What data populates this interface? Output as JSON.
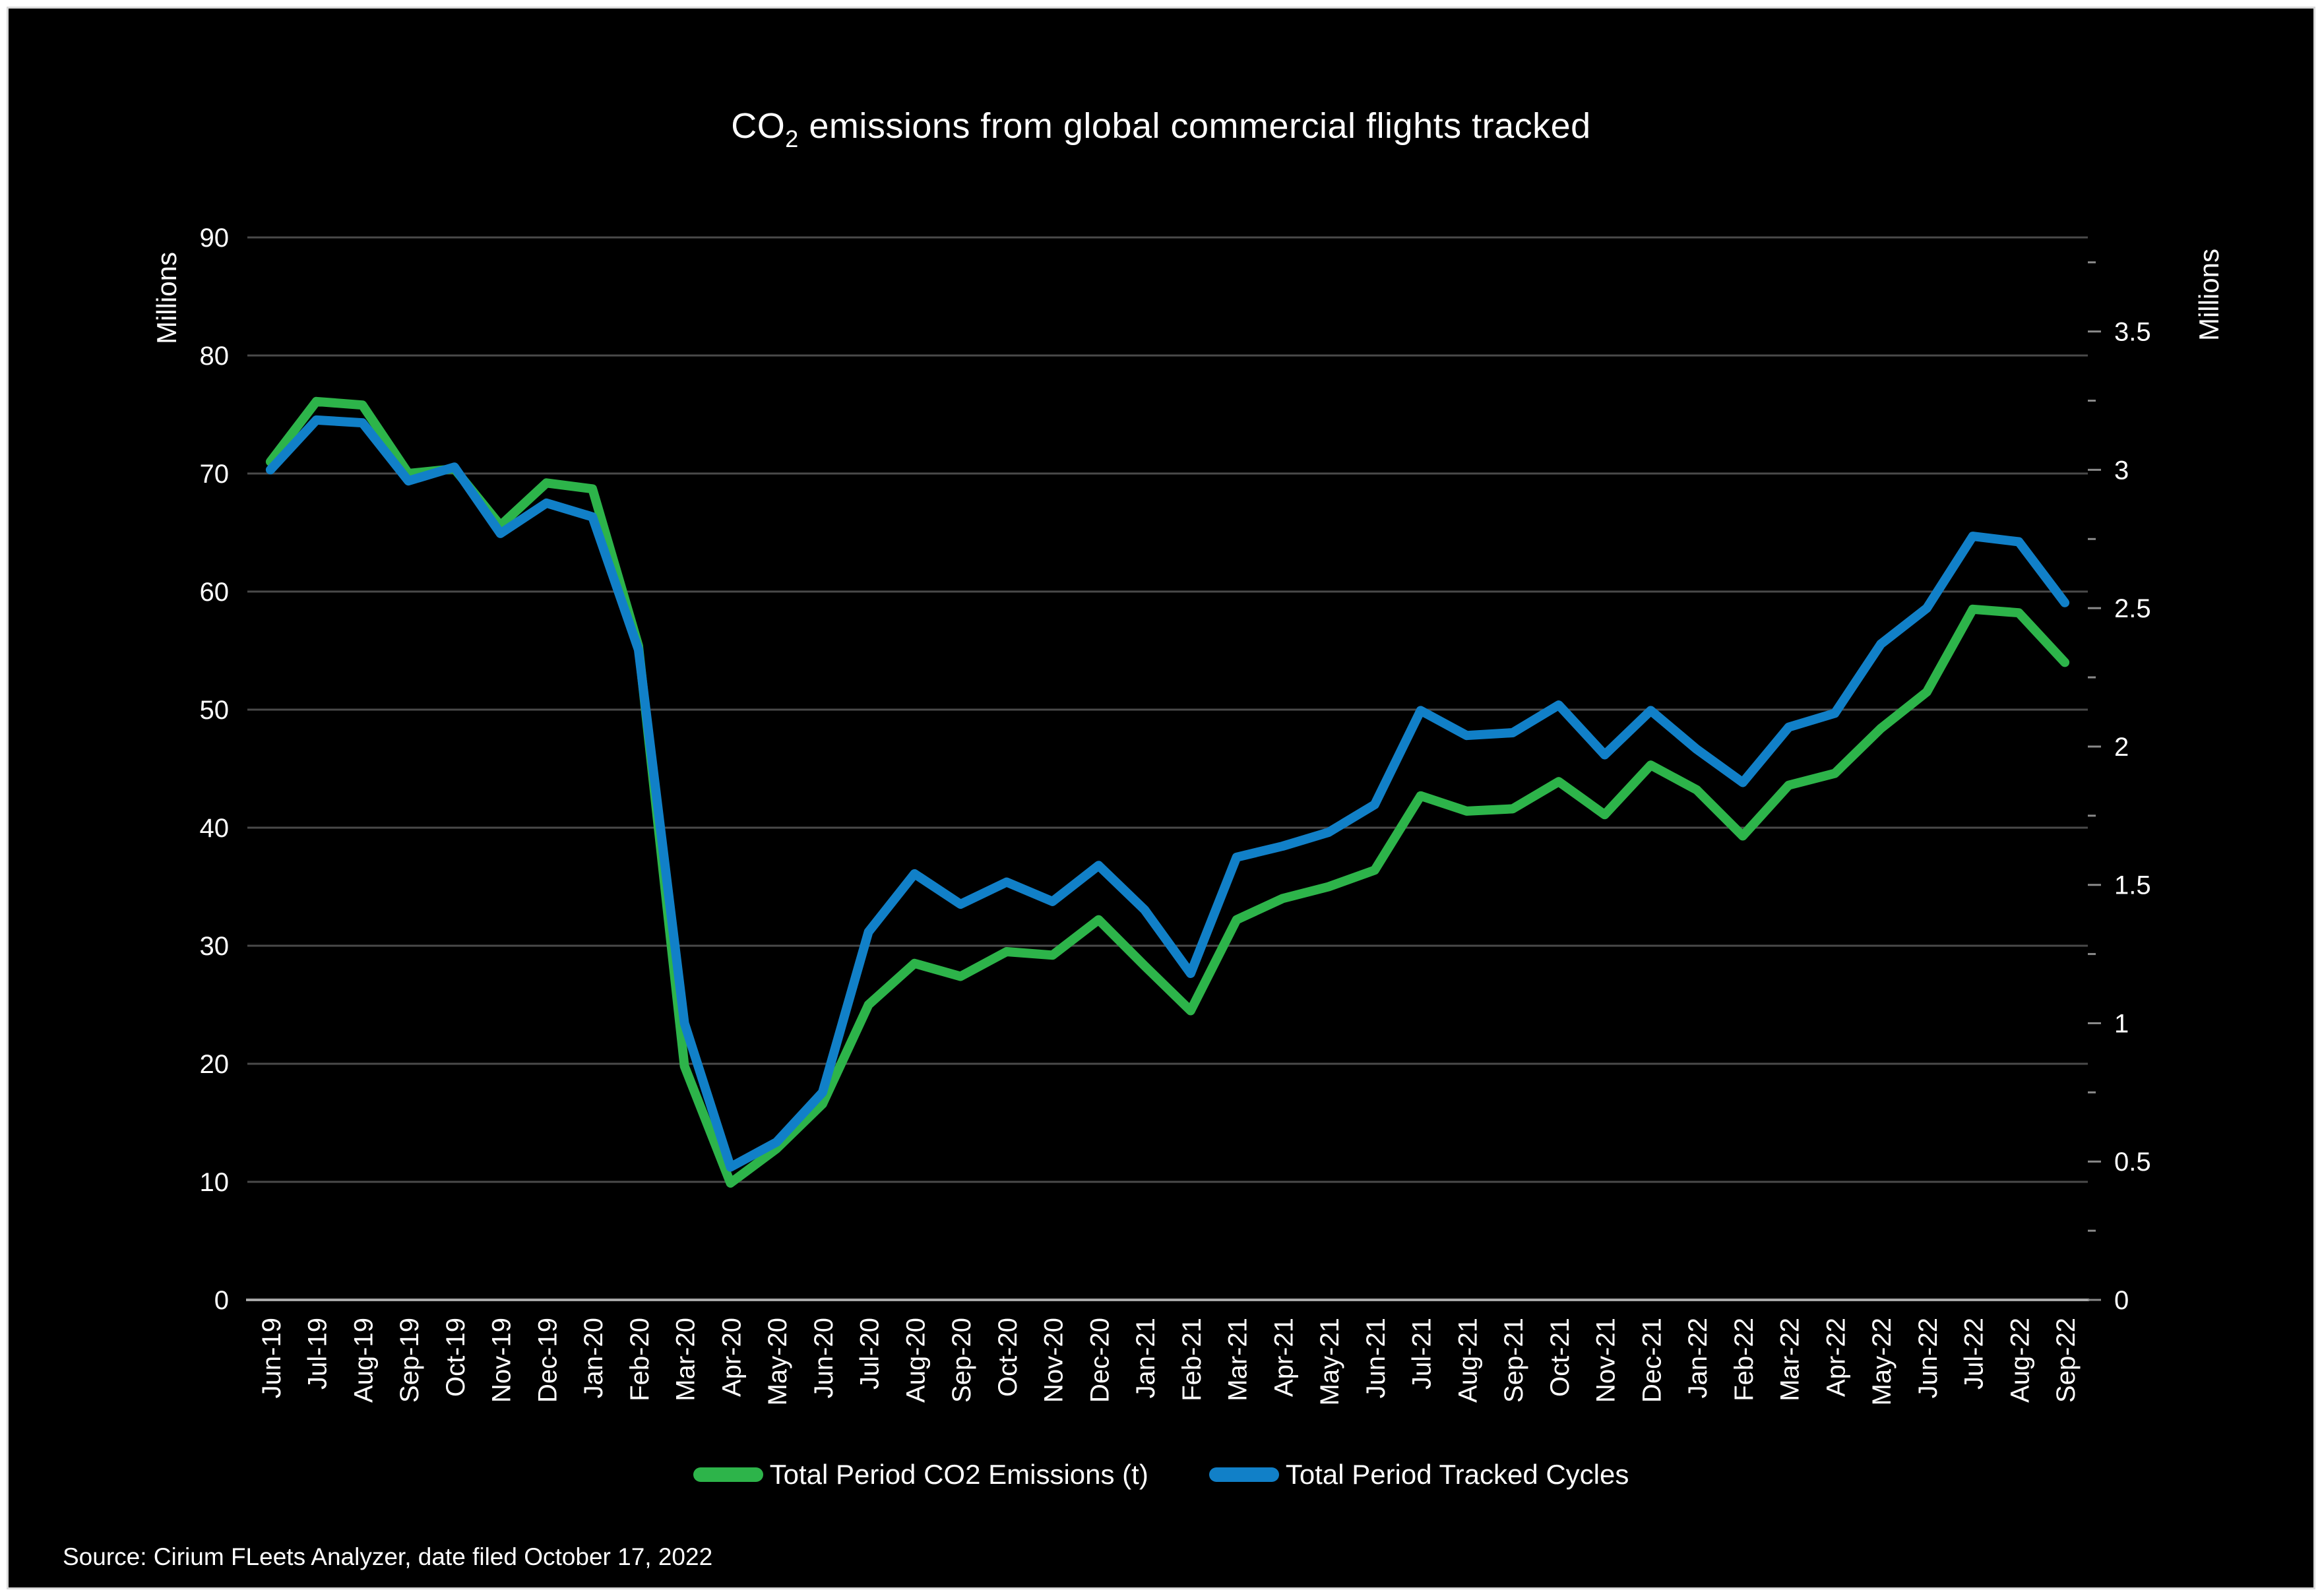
{
  "chart_data": {
    "type": "line",
    "title": {
      "prefix": "CO",
      "subscript": "2",
      "rest": " emissions from global commercial flights tracked"
    },
    "categories": [
      "Jun-19",
      "Jul-19",
      "Aug-19",
      "Sep-19",
      "Oct-19",
      "Nov-19",
      "Dec-19",
      "Jan-20",
      "Feb-20",
      "Mar-20",
      "Apr-20",
      "May-20",
      "Jun-20",
      "Jul-20",
      "Aug-20",
      "Sep-20",
      "Oct-20",
      "Nov-20",
      "Dec-20",
      "Jan-21",
      "Feb-21",
      "Mar-21",
      "Apr-21",
      "May-21",
      "Jun-21",
      "Jul-21",
      "Aug-21",
      "Sep-21",
      "Oct-21",
      "Nov-21",
      "Dec-21",
      "Jan-22",
      "Feb-22",
      "Mar-22",
      "Apr-22",
      "May-22",
      "Jun-22",
      "Jul-22",
      "Aug-22",
      "Sep-22"
    ],
    "series": [
      {
        "name": "Total Period CO2 Emissions (t)",
        "axis": "left",
        "color": "#2db44a",
        "values": [
          71.0,
          76.1,
          75.8,
          70.0,
          70.4,
          65.6,
          69.2,
          68.7,
          55.4,
          19.8,
          9.9,
          12.8,
          16.6,
          25.0,
          28.5,
          27.4,
          29.5,
          29.2,
          32.2,
          28.3,
          24.5,
          32.2,
          34.0,
          35.0,
          36.4,
          42.7,
          41.4,
          41.6,
          43.9,
          41.1,
          45.3,
          43.2,
          39.3,
          43.6,
          44.6,
          48.4,
          51.5,
          58.5,
          58.2,
          54.0
        ]
      },
      {
        "name": "Total Period Tracked Cycles",
        "axis": "right",
        "color": "#1180c8",
        "values": [
          3.0,
          3.18,
          3.17,
          2.96,
          3.01,
          2.77,
          2.88,
          2.83,
          2.35,
          1.0,
          0.48,
          0.57,
          0.75,
          1.33,
          1.54,
          1.43,
          1.51,
          1.44,
          1.57,
          1.41,
          1.18,
          1.6,
          1.64,
          1.69,
          1.79,
          2.13,
          2.04,
          2.05,
          2.15,
          1.97,
          2.13,
          1.99,
          1.87,
          2.07,
          2.12,
          2.37,
          2.5,
          2.76,
          2.74,
          2.52
        ]
      }
    ],
    "left_axis": {
      "title": "Millions",
      "min": 0,
      "max": 90,
      "ticks": [
        0,
        10,
        20,
        30,
        40,
        50,
        60,
        70,
        80,
        90
      ]
    },
    "right_axis": {
      "title": "Millions",
      "min": 0,
      "max": 3.84,
      "ticks": [
        0,
        0.5,
        1,
        1.5,
        2,
        2.5,
        3,
        3.5
      ]
    },
    "grid": true,
    "legend_position": "bottom",
    "source": "Source: Cirium FLeets Analyzer, date filed October 17, 2022"
  },
  "colors": {
    "background": "#000000",
    "frame": "#ffffff",
    "gridline": "#4a4a4a",
    "axis_line": "#a8a8a8",
    "text": "#ffffff",
    "co2_green": "#2db44a",
    "cycles_blue": "#1180c8"
  }
}
